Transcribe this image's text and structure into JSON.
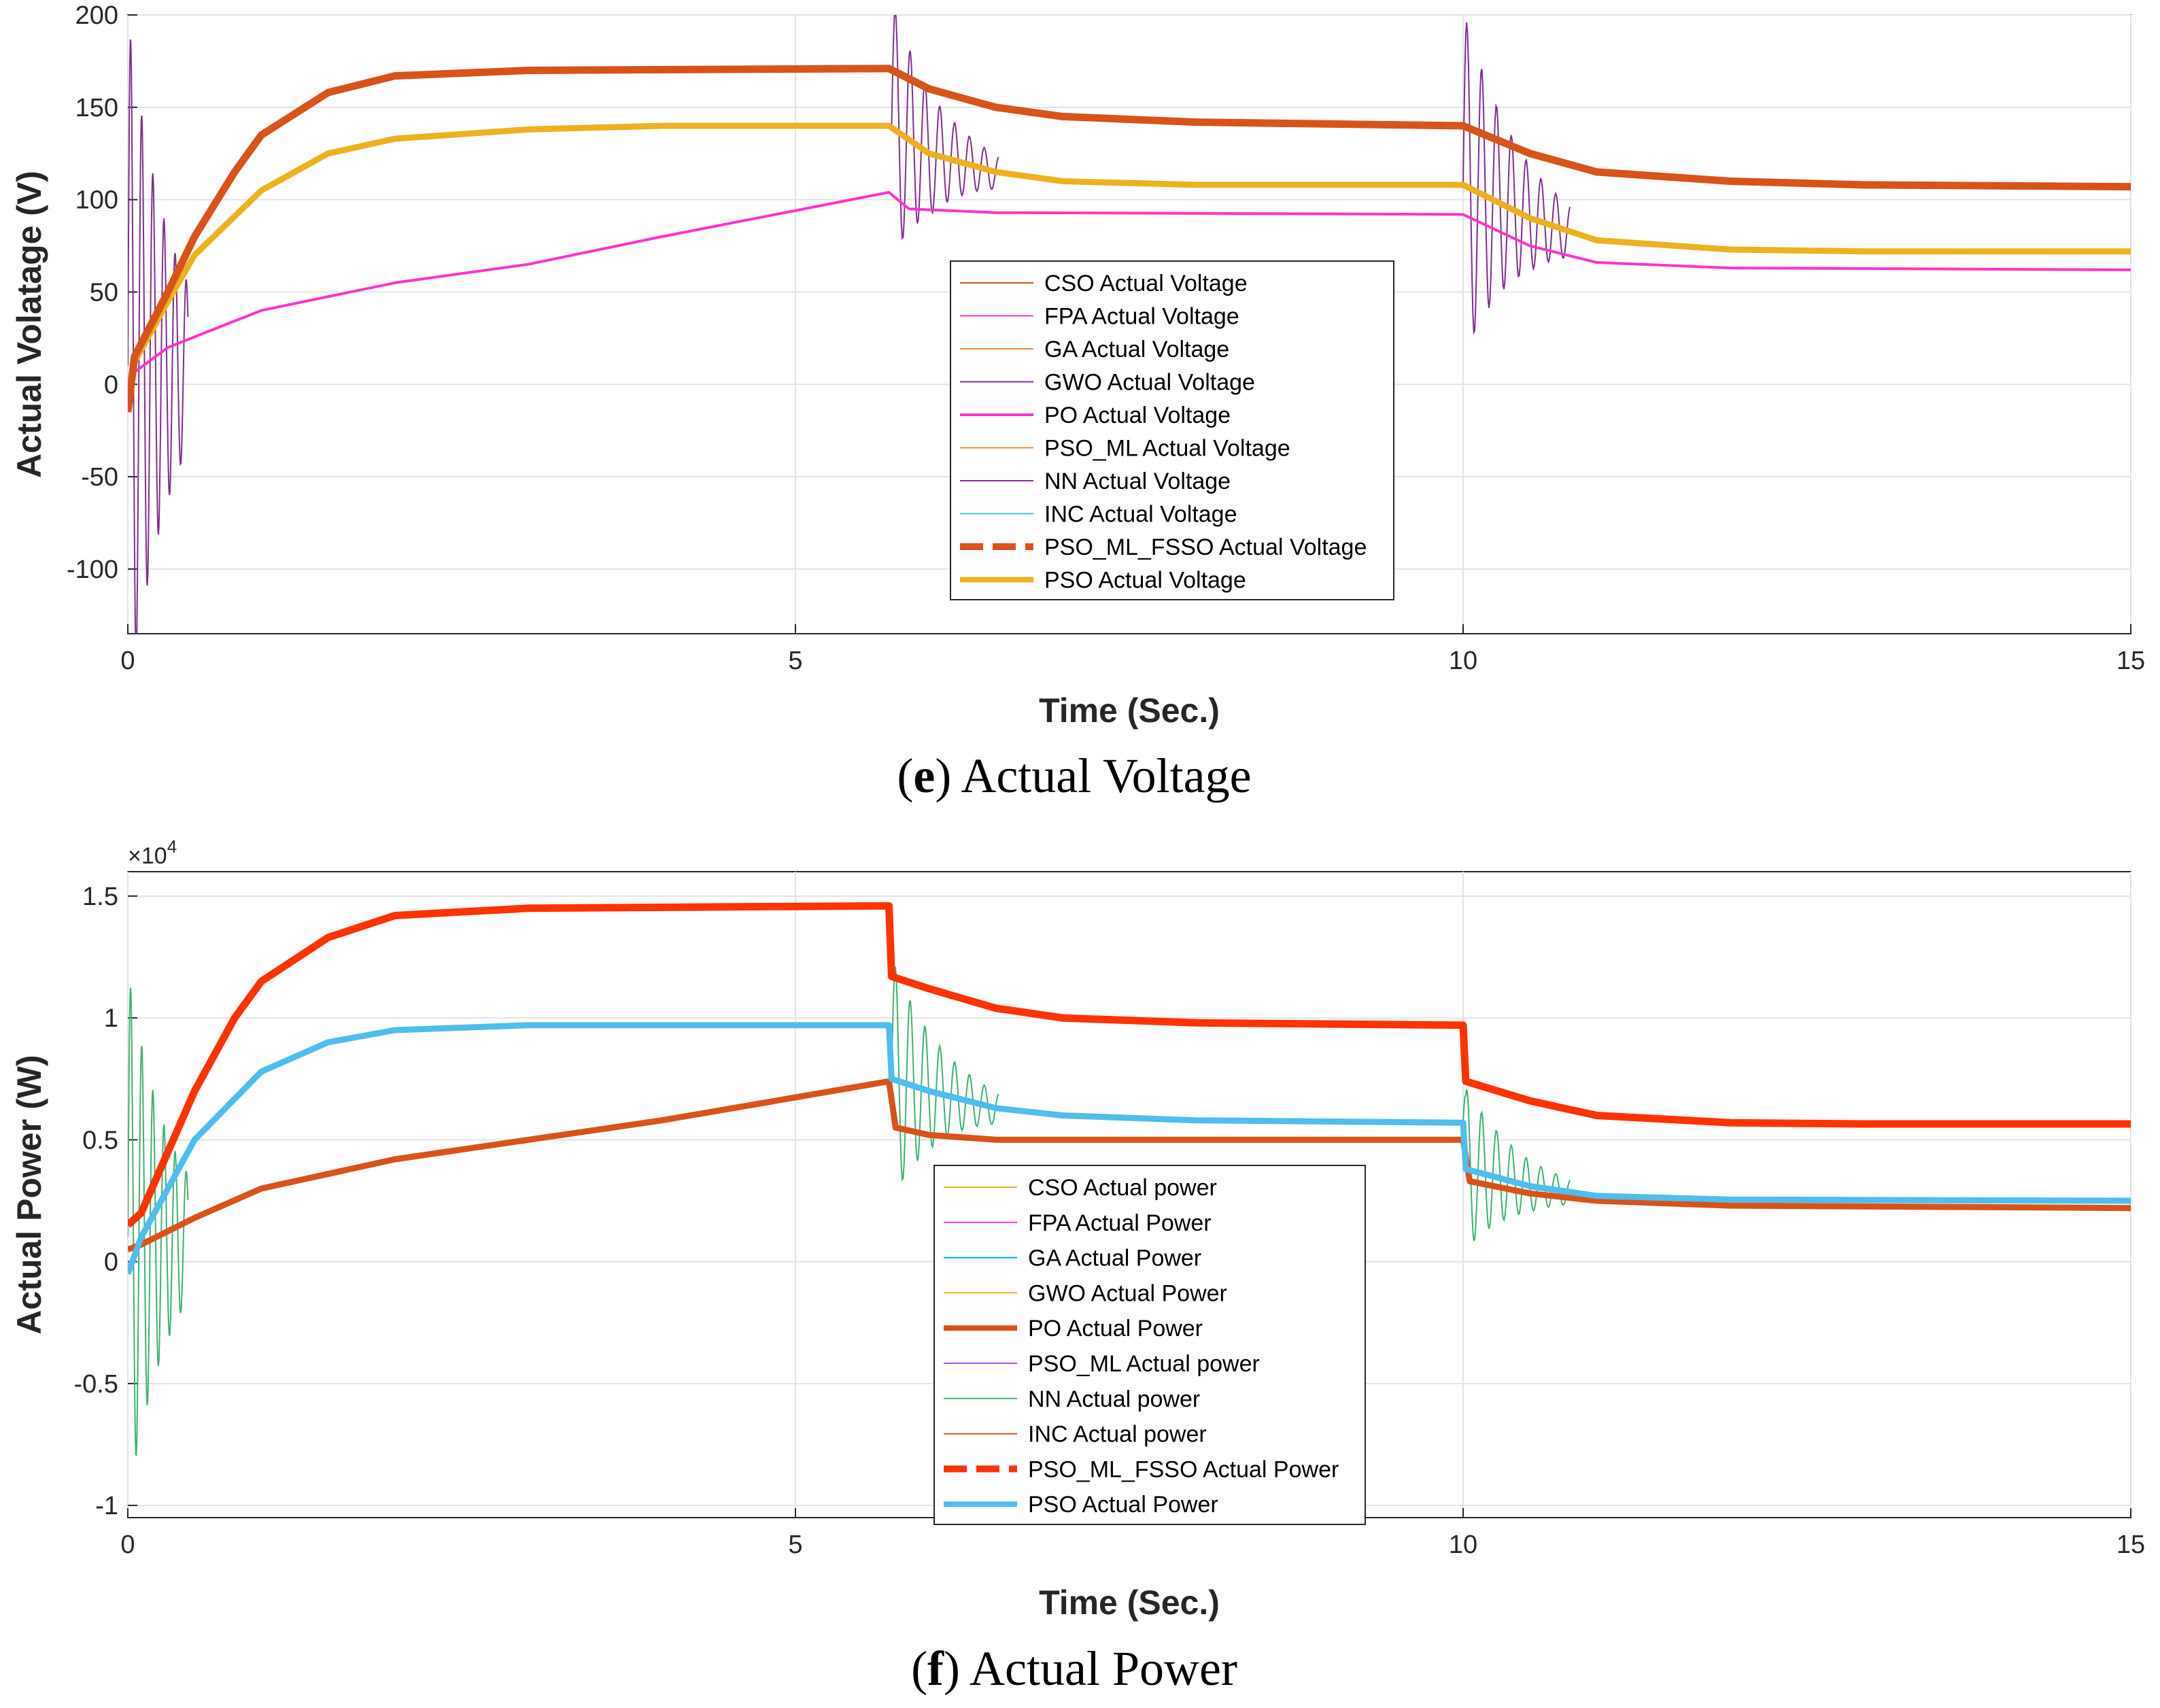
{
  "chart_data": [
    {
      "type": "line",
      "caption_letter": "e",
      "caption_text": "Actual Voltage",
      "xlabel": "Time (Sec.)",
      "ylabel": "Actual Volatage (V)",
      "xlim": [
        0,
        15
      ],
      "ylim": [
        -135,
        200
      ],
      "xticks": [
        "0",
        "5",
        "10",
        "15"
      ],
      "yticks": [
        "-100",
        "-50",
        "0",
        "50",
        "100",
        "150",
        "200"
      ],
      "grid": true,
      "legend_position": "center",
      "series": [
        {
          "name": "CSO Actual Voltage",
          "color": "#D95319",
          "style": "thin"
        },
        {
          "name": "FPA Actual Voltage",
          "color": "#FF33CC",
          "style": "thin"
        },
        {
          "name": "GA Actual Voltage",
          "color": "#F08A3C",
          "style": "thin"
        },
        {
          "name": "GWO Actual Voltage",
          "color": "#7E2F8E",
          "style": "thin"
        },
        {
          "name": "PO Actual Voltage",
          "color": "#FF33CC",
          "style": "medium",
          "points": [
            [
              0.02,
              5
            ],
            [
              0.3,
              20
            ],
            [
              1,
              40
            ],
            [
              2,
              55
            ],
            [
              3,
              65
            ],
            [
              4,
              80
            ],
            [
              5.7,
              104
            ],
            [
              5.85,
              95
            ],
            [
              6.5,
              93
            ],
            [
              10,
              92
            ],
            [
              10.5,
              75
            ],
            [
              11,
              66
            ],
            [
              12,
              63
            ],
            [
              15,
              62
            ]
          ]
        },
        {
          "name": "PSO_ML Actual Voltage",
          "color": "#F08A3C",
          "style": "thin"
        },
        {
          "name": "NN Actual Voltage",
          "color": "#7E2F8E",
          "style": "thin"
        },
        {
          "name": "INC Actual Voltage",
          "color": "#4DBEEE",
          "style": "thin"
        },
        {
          "name": "PSO_ML_FSSO Actual Voltage",
          "color": "#D95319",
          "style": "thick-dashed",
          "points": [
            [
              0,
              -15
            ],
            [
              0.05,
              15
            ],
            [
              0.3,
              50
            ],
            [
              0.5,
              80
            ],
            [
              0.8,
              115
            ],
            [
              1,
              135
            ],
            [
              1.5,
              158
            ],
            [
              2,
              167
            ],
            [
              3,
              170
            ],
            [
              5.7,
              171
            ],
            [
              6,
              160
            ],
            [
              6.5,
              150
            ],
            [
              7,
              145
            ],
            [
              8,
              142
            ],
            [
              10,
              140
            ],
            [
              10.5,
              125
            ],
            [
              11,
              115
            ],
            [
              12,
              110
            ],
            [
              13,
              108
            ],
            [
              15,
              107
            ]
          ]
        },
        {
          "name": "PSO Actual Voltage",
          "color": "#EDB120",
          "style": "thick",
          "points": [
            [
              0,
              -15
            ],
            [
              0.05,
              12
            ],
            [
              0.3,
              45
            ],
            [
              0.5,
              70
            ],
            [
              1,
              105
            ],
            [
              1.5,
              125
            ],
            [
              2,
              133
            ],
            [
              3,
              138
            ],
            [
              4,
              140
            ],
            [
              5.7,
              140
            ],
            [
              6,
              125
            ],
            [
              6.5,
              115
            ],
            [
              7,
              110
            ],
            [
              8,
              108
            ],
            [
              10,
              108
            ],
            [
              10.5,
              90
            ],
            [
              11,
              78
            ],
            [
              12,
              73
            ],
            [
              13,
              72
            ],
            [
              15,
              72
            ]
          ]
        }
      ]
    },
    {
      "type": "line",
      "caption_letter": "f",
      "caption_text": "Actual Power",
      "xlabel": "Time (Sec.)",
      "ylabel": "Actual Power (W)",
      "y_exponent_base": "×10",
      "y_exponent_power": "4",
      "xlim": [
        0,
        15
      ],
      "ylim": [
        -1.05,
        1.6
      ],
      "xticks": [
        "0",
        "5",
        "10",
        "15"
      ],
      "yticks": [
        "-1",
        "-0.5",
        "0",
        "0.5",
        "1",
        "1.5"
      ],
      "grid": true,
      "legend_position": "bottom-center",
      "series": [
        {
          "name": "CSO Actual power",
          "color": "#EDB120",
          "style": "thin"
        },
        {
          "name": "FPA Actual Power",
          "color": "#FF33CC",
          "style": "thin"
        },
        {
          "name": "GA Actual Power",
          "color": "#00A6D6",
          "style": "thin"
        },
        {
          "name": "GWO Actual Power",
          "color": "#EDB120",
          "style": "thin"
        },
        {
          "name": "PO Actual Power",
          "color": "#D95319",
          "style": "thick",
          "points": [
            [
              0,
              0.05
            ],
            [
              0.1,
              0.07
            ],
            [
              0.5,
              0.18
            ],
            [
              1,
              0.3
            ],
            [
              2,
              0.42
            ],
            [
              3,
              0.5
            ],
            [
              4,
              0.58
            ],
            [
              5.7,
              0.74
            ],
            [
              5.75,
              0.55
            ],
            [
              6,
              0.52
            ],
            [
              6.5,
              0.5
            ],
            [
              10,
              0.5
            ],
            [
              10.05,
              0.33
            ],
            [
              10.5,
              0.28
            ],
            [
              11,
              0.25
            ],
            [
              12,
              0.23
            ],
            [
              15,
              0.22
            ]
          ]
        },
        {
          "name": "PSO_ML Actual power",
          "color": "#B24DF0",
          "style": "thin"
        },
        {
          "name": "NN Actual power",
          "color": "#3CB371",
          "style": "thin"
        },
        {
          "name": "INC Actual power",
          "color": "#D95319",
          "style": "thin"
        },
        {
          "name": "PSO_ML_FSSO Actual Power",
          "color": "#FF3300",
          "style": "thick-dashed",
          "points": [
            [
              0,
              0.15
            ],
            [
              0.1,
              0.2
            ],
            [
              0.3,
              0.45
            ],
            [
              0.5,
              0.7
            ],
            [
              0.8,
              1.0
            ],
            [
              1,
              1.15
            ],
            [
              1.5,
              1.33
            ],
            [
              2,
              1.42
            ],
            [
              3,
              1.45
            ],
            [
              5.7,
              1.46
            ],
            [
              5.72,
              1.17
            ],
            [
              6,
              1.12
            ],
            [
              6.5,
              1.04
            ],
            [
              7,
              1.0
            ],
            [
              8,
              0.98
            ],
            [
              10,
              0.97
            ],
            [
              10.02,
              0.74
            ],
            [
              10.5,
              0.66
            ],
            [
              11,
              0.6
            ],
            [
              12,
              0.57
            ],
            [
              13,
              0.565
            ],
            [
              15,
              0.565
            ]
          ]
        },
        {
          "name": "PSO Actual Power",
          "color": "#4DBEEE",
          "style": "thick",
          "points": [
            [
              0,
              -0.05
            ],
            [
              0.1,
              0.1
            ],
            [
              0.3,
              0.3
            ],
            [
              0.5,
              0.5
            ],
            [
              1,
              0.78
            ],
            [
              1.5,
              0.9
            ],
            [
              2,
              0.95
            ],
            [
              3,
              0.97
            ],
            [
              5.7,
              0.97
            ],
            [
              5.72,
              0.75
            ],
            [
              6,
              0.7
            ],
            [
              6.5,
              0.63
            ],
            [
              7,
              0.6
            ],
            [
              8,
              0.58
            ],
            [
              10,
              0.57
            ],
            [
              10.02,
              0.38
            ],
            [
              10.5,
              0.31
            ],
            [
              11,
              0.27
            ],
            [
              12,
              0.255
            ],
            [
              15,
              0.25
            ]
          ]
        }
      ]
    }
  ]
}
